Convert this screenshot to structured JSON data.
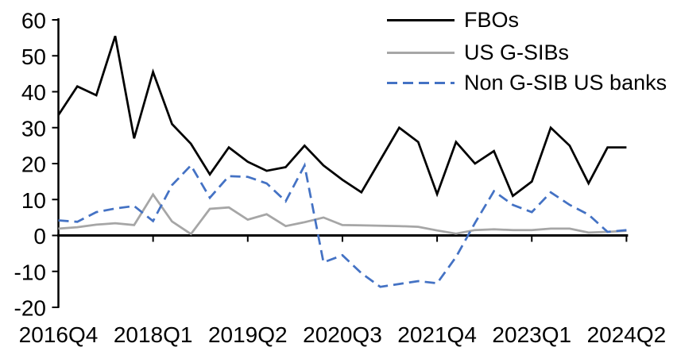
{
  "chart_data": {
    "type": "line",
    "title": "",
    "xlabel": "",
    "ylabel": "",
    "grid": false,
    "legend_position": "top-right",
    "ylim": [
      -20,
      60
    ],
    "y_ticks": [
      60,
      50,
      40,
      30,
      20,
      10,
      0,
      -10,
      -20
    ],
    "x_tick_labels": [
      "2016Q4",
      "2018Q1",
      "2019Q2",
      "2020Q3",
      "2021Q4",
      "2023Q1",
      "2024Q2"
    ],
    "x_tick_positions": [
      0,
      5,
      10,
      15,
      20,
      25,
      30
    ],
    "categories": [
      "2016Q4",
      "2017Q1",
      "2017Q2",
      "2017Q3",
      "2017Q4",
      "2018Q1",
      "2018Q2",
      "2018Q3",
      "2018Q4",
      "2019Q1",
      "2019Q2",
      "2019Q3",
      "2019Q4",
      "2020Q1",
      "2020Q2",
      "2020Q3",
      "2020Q4",
      "2021Q1",
      "2021Q2",
      "2021Q3",
      "2021Q4",
      "2022Q1",
      "2022Q2",
      "2022Q3",
      "2022Q4",
      "2023Q1",
      "2023Q2",
      "2023Q3",
      "2023Q4",
      "2024Q1",
      "2024Q2"
    ],
    "series": [
      {
        "name": "FBOs",
        "color": "#000000",
        "style": "solid",
        "values": [
          33.5,
          41.5,
          39,
          55.5,
          27,
          45.5,
          31,
          25.5,
          17,
          24.5,
          20.5,
          18,
          19,
          25,
          19.5,
          15.5,
          12,
          21,
          30,
          26,
          11.5,
          26,
          20,
          23.5,
          11,
          15,
          30,
          25,
          14.5,
          24.5,
          24.5
        ]
      },
      {
        "name": "US G-SIBs",
        "color": "#A6A6A6",
        "style": "solid",
        "values": [
          1.9,
          2.3,
          3,
          3.4,
          2.9,
          11.4,
          3.9,
          0.4,
          7.4,
          7.8,
          4.4,
          5.9,
          2.6,
          3.7,
          5,
          2.9,
          2.8,
          2.7,
          2.6,
          2.4,
          1.4,
          0.5,
          1.5,
          1.7,
          1.5,
          1.5,
          1.9,
          1.9,
          0.8,
          1,
          1.3
        ]
      },
      {
        "name": "Non G-SIB US banks",
        "color": "#4472C4",
        "style": "dashed",
        "values": [
          4.2,
          3.8,
          6.5,
          7.5,
          8.2,
          4,
          14,
          19.5,
          10.5,
          16.5,
          16.3,
          14.5,
          9.5,
          19.5,
          -7.5,
          -5.5,
          -10.5,
          -14.3,
          -13.5,
          -12.7,
          -13.3,
          -6,
          3.5,
          12.3,
          8.5,
          6.5,
          12,
          8.5,
          5.8,
          1,
          1.5
        ]
      }
    ]
  },
  "legend": {
    "items": [
      {
        "label": "FBOs",
        "color": "#000000",
        "style": "solid"
      },
      {
        "label": "US G-SIBs",
        "color": "#A6A6A6",
        "style": "solid"
      },
      {
        "label": "Non G-SIB US banks",
        "color": "#4472C4",
        "style": "dashed"
      }
    ]
  }
}
